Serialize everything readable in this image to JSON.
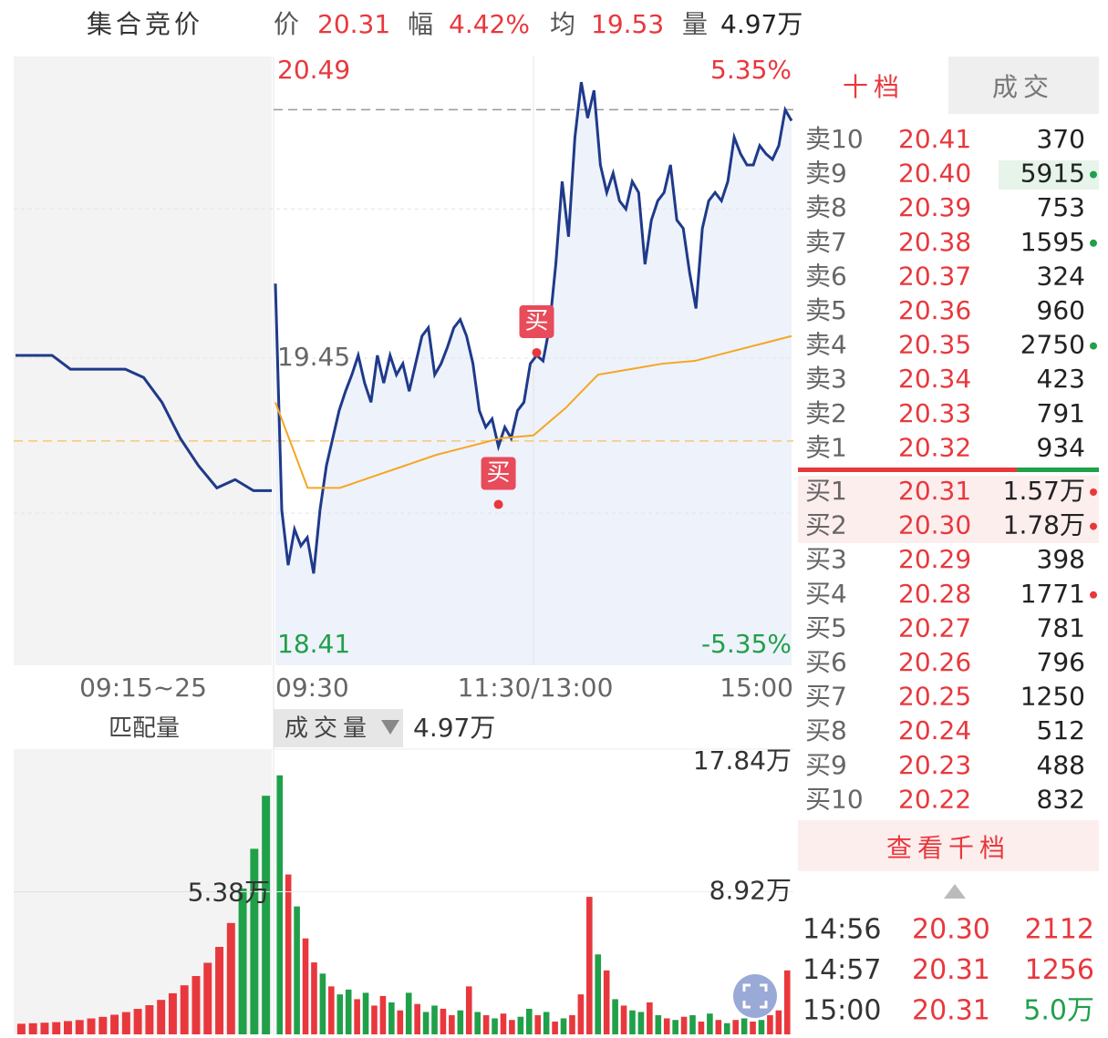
{
  "header": {
    "title": "集合竞价",
    "items": [
      {
        "label": "价",
        "value": "20.31"
      },
      {
        "label": "幅",
        "value": "4.42%"
      },
      {
        "label": "均",
        "value": "19.53"
      },
      {
        "label": "量",
        "value": "4.97万"
      }
    ]
  },
  "chart_data": [
    {
      "type": "line",
      "x_labels": [
        "09:15~25",
        "09:30",
        "11:30/13:00",
        "15:00"
      ],
      "ylim": [
        18.41,
        20.49
      ],
      "yticks": [
        20.49,
        19.45,
        18.41
      ],
      "y2lim": [
        -5.35,
        5.35
      ],
      "y2ticks": [
        {
          "value": 5.35,
          "label": "5.35%"
        },
        {
          "value": -5.35,
          "label": "-5.35%"
        }
      ],
      "reference_lines": [
        20.35,
        19.15
      ],
      "series": [
        {
          "color": "#1f3a8a",
          "values": [
            19.72,
            18.9,
            18.7,
            18.83,
            18.77,
            18.8,
            18.67,
            18.9,
            19.06,
            19.16,
            19.26,
            19.33,
            19.39,
            19.46,
            19.36,
            19.29,
            19.46,
            19.36,
            19.46,
            19.39,
            19.43,
            19.33,
            19.43,
            19.53,
            19.56,
            19.39,
            19.43,
            19.49,
            19.56,
            19.59,
            19.53,
            19.43,
            19.26,
            19.2,
            19.23,
            19.13,
            19.2,
            19.16,
            19.26,
            19.29,
            19.43,
            19.46,
            19.44,
            19.56,
            19.79,
            20.09,
            19.89,
            20.25,
            20.45,
            20.32,
            20.42,
            20.15,
            20.05,
            20.12,
            20.02,
            19.99,
            20.09,
            20.05,
            19.79,
            19.95,
            20.02,
            20.05,
            20.15,
            19.95,
            19.92,
            19.76,
            19.63,
            19.92,
            20.02,
            20.05,
            20.02,
            20.09,
            20.25,
            20.19,
            20.15,
            20.15,
            20.22,
            20.19,
            20.17,
            20.22,
            20.35,
            20.31
          ]
        },
        {
          "color": "#f5a623",
          "values": [
            19.29,
            18.98,
            18.98,
            19.02,
            19.06,
            19.1,
            19.13,
            19.16,
            19.17,
            19.27,
            19.39,
            19.41,
            19.43,
            19.44,
            19.47,
            19.5,
            19.53
          ]
        }
      ],
      "auction_series": {
        "color": "#1f3a8a",
        "values": [
          19.46,
          19.46,
          19.46,
          19.41,
          19.41,
          19.41,
          19.41,
          19.38,
          19.29,
          19.16,
          19.06,
          18.98,
          19.01,
          18.97,
          18.97
        ]
      },
      "annotations": [
        {
          "text": "买",
          "index": 35,
          "value": 18.92
        },
        {
          "text": "买",
          "index": 41,
          "value": 19.47
        }
      ]
    },
    {
      "type": "bar",
      "title": "成交量",
      "value_text": "4.97万",
      "auction_title": "匹配量",
      "ylim": [
        0,
        178400
      ],
      "yticks": [
        {
          "value": 178400,
          "label": "17.84万"
        },
        {
          "value": 89200,
          "label": "8.92万"
        }
      ],
      "values": [
        162000,
        100000,
        80000,
        60000,
        45000,
        38000,
        30000,
        25000,
        28000,
        22000,
        26000,
        18000,
        24000,
        20000,
        15000,
        26000,
        19000,
        14000,
        18000,
        16000,
        12000,
        15000,
        30000,
        14000,
        12000,
        10000,
        13000,
        9000,
        11000,
        16000,
        12000,
        14000,
        8000,
        10000,
        12000,
        25000,
        86000,
        50000,
        40000,
        22000,
        18000,
        15000,
        14000,
        20000,
        12000,
        10000,
        9000,
        11000,
        12000,
        8000,
        13000,
        9000,
        7000,
        9000,
        10000,
        8000,
        9000,
        12000,
        15000,
        40000
      ],
      "colors": [
        "#21a04a",
        "#e8383d",
        "#21a04a",
        "#e8383d",
        "#e8383d",
        "#21a04a",
        "#e8383d",
        "#21a04a",
        "#21a04a",
        "#e8383d",
        "#21a04a",
        "#e8383d",
        "#e8383d",
        "#21a04a",
        "#e8383d",
        "#21a04a",
        "#e8383d",
        "#21a04a",
        "#21a04a",
        "#e8383d",
        "#e8383d",
        "#21a04a",
        "#e8383d",
        "#21a04a",
        "#e8383d",
        "#21a04a",
        "#e8383d",
        "#e8383d",
        "#21a04a",
        "#21a04a",
        "#e8383d",
        "#21a04a",
        "#e8383d",
        "#21a04a",
        "#e8383d",
        "#e8383d",
        "#e8383d",
        "#21a04a",
        "#e8383d",
        "#21a04a",
        "#e8383d",
        "#21a04a",
        "#21a04a",
        "#e8383d",
        "#21a04a",
        "#e8383d",
        "#21a04a",
        "#e8383d",
        "#21a04a",
        "#e8383d",
        "#21a04a",
        "#e8383d",
        "#21a04a",
        "#e8383d",
        "#21a04a",
        "#e8383d",
        "#21a04a",
        "#e8383d",
        "#e8383d",
        "#e8383d"
      ],
      "auction": {
        "ylim": [
          0,
          107600
        ],
        "yticks": [
          {
            "value": 53800,
            "label": "5.38万"
          }
        ],
        "values": [
          4000,
          4200,
          4400,
          4600,
          5000,
          5400,
          6000,
          6600,
          7400,
          8400,
          9600,
          11000,
          13000,
          15500,
          18500,
          22000,
          27000,
          33000,
          42000,
          55000,
          70000,
          90000
        ],
        "colors": [
          "#e8383d",
          "#e8383d",
          "#e8383d",
          "#e8383d",
          "#e8383d",
          "#e8383d",
          "#e8383d",
          "#e8383d",
          "#e8383d",
          "#e8383d",
          "#e8383d",
          "#e8383d",
          "#e8383d",
          "#e8383d",
          "#e8383d",
          "#e8383d",
          "#e8383d",
          "#e8383d",
          "#e8383d",
          "#21a04a",
          "#21a04a",
          "#21a04a"
        ]
      }
    }
  ],
  "order_book": {
    "tabs": [
      "十档",
      "成交"
    ],
    "sells": [
      [
        "卖10",
        "20.41",
        "370"
      ],
      [
        "卖9",
        "20.40",
        "5915"
      ],
      [
        "卖8",
        "20.39",
        "753"
      ],
      [
        "卖7",
        "20.38",
        "1595"
      ],
      [
        "卖6",
        "20.37",
        "324"
      ],
      [
        "卖5",
        "20.36",
        "960"
      ],
      [
        "卖4",
        "20.35",
        "2750"
      ],
      [
        "卖3",
        "20.34",
        "423"
      ],
      [
        "卖2",
        "20.33",
        "791"
      ],
      [
        "卖1",
        "20.32",
        "934"
      ]
    ],
    "buys": [
      [
        "买1",
        "20.31",
        "1.57万"
      ],
      [
        "买2",
        "20.30",
        "1.78万"
      ],
      [
        "买3",
        "20.29",
        "398"
      ],
      [
        "买4",
        "20.28",
        "1771"
      ],
      [
        "买5",
        "20.27",
        "781"
      ],
      [
        "买6",
        "20.26",
        "796"
      ],
      [
        "买7",
        "20.25",
        "1250"
      ],
      [
        "买8",
        "20.24",
        "512"
      ],
      [
        "买9",
        "20.23",
        "488"
      ],
      [
        "买10",
        "20.22",
        "832"
      ]
    ],
    "more_button": "查看千档"
  },
  "trades": [
    [
      "14:56",
      "20.30",
      "2112"
    ],
    [
      "14:57",
      "20.31",
      "1256"
    ],
    [
      "15:00",
      "20.31",
      "5.0万"
    ]
  ]
}
